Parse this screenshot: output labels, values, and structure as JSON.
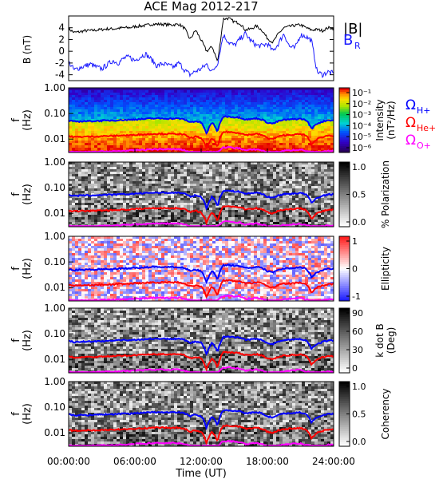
{
  "title": "ACE Mag 2012-217",
  "colors": {
    "b_total": "#000000",
    "b_r": "#1a1aff",
    "omega_h": "#0000ff",
    "omega_he": "#ff0000",
    "omega_o": "#ff00ff"
  },
  "x_axis": {
    "label": "Time (UT)",
    "ticks": [
      "00:00:00",
      "06:00:00",
      "12:00:00",
      "18:00:00",
      "24:00:00"
    ]
  },
  "freq_ticks": [
    "1.00",
    "0.10",
    "0.01"
  ],
  "panels": [
    {
      "id": "intensity",
      "ylabel_line1": "f",
      "ylabel_line2": "(Hz)",
      "colorbar_title_line1": "Intensity",
      "colorbar_title_line2": "(nT²/Hz)",
      "colorbar_ticks": [
        "10⁻¹",
        "10⁻²",
        "10⁻³",
        "10⁻⁴",
        "10⁻⁵",
        "10⁻⁶"
      ],
      "legend": [
        {
          "label": "Ω",
          "sub": "H+",
          "color": "#0000ff"
        },
        {
          "label": "Ω",
          "sub": "He+",
          "color": "#ff0000"
        },
        {
          "label": "Ω",
          "sub": "O+",
          "color": "#ff00ff"
        }
      ]
    },
    {
      "id": "polarization",
      "ylabel_line1": "f",
      "ylabel_line2": "(Hz)",
      "colorbar_title_line1": "% Polarization",
      "colorbar_title_line2": "",
      "colorbar_ticks": [
        "1.0",
        "0.5",
        "0.0"
      ]
    },
    {
      "id": "ellipticity",
      "ylabel_line1": "f",
      "ylabel_line2": "(Hz)",
      "colorbar_title_line1": "Ellipticity",
      "colorbar_title_line2": "",
      "colorbar_ticks": [
        "1",
        "0",
        "-1"
      ]
    },
    {
      "id": "kdotb",
      "ylabel_line1": "f",
      "ylabel_line2": "(Hz)",
      "colorbar_title_line1": "k dot B",
      "colorbar_title_line2": "(Deg)",
      "colorbar_ticks": [
        "90",
        "60",
        "30",
        "0"
      ]
    },
    {
      "id": "coherency",
      "ylabel_line1": "f",
      "ylabel_line2": "(Hz)",
      "colorbar_title_line1": "Coherency",
      "colorbar_title_line2": "",
      "colorbar_ticks": [
        "1.0",
        "0.5",
        "0.0"
      ]
    }
  ],
  "chart_data": {
    "type": "line",
    "title": "ACE Mag 2012-217",
    "xlabel": "Time (UT)",
    "ylabel": "B (nT)",
    "xlim": [
      0,
      24
    ],
    "ylim": [
      -5,
      6
    ],
    "yticks": [
      4,
      2,
      0,
      -2,
      -4
    ],
    "x_hours": [
      0,
      0.5,
      1,
      1.5,
      2,
      2.5,
      3,
      3.5,
      4,
      4.5,
      5,
      5.5,
      6,
      6.5,
      7,
      7.5,
      8,
      8.5,
      9,
      9.5,
      10,
      10.5,
      11,
      11.5,
      12,
      12.5,
      13,
      13.5,
      14,
      14.5,
      15,
      15.5,
      16,
      16.5,
      17,
      17.5,
      18,
      18.5,
      19,
      19.5,
      20,
      20.5,
      21,
      21.5,
      22,
      22.5,
      23,
      23.5,
      24
    ],
    "series": [
      {
        "name": "|B|",
        "values": [
          3.8,
          3.2,
          3.3,
          3.5,
          3.5,
          3.6,
          3.7,
          3.8,
          3.8,
          3.9,
          4.0,
          4.0,
          4.2,
          4.3,
          4.4,
          4.6,
          4.6,
          4.6,
          4.5,
          4.5,
          4.6,
          3.9,
          2.0,
          3.6,
          1.9,
          0.0,
          0.8,
          -1.8,
          5.5,
          5.6,
          5.0,
          4.8,
          3.6,
          3.8,
          4.3,
          3.6,
          2.2,
          1.5,
          3.0,
          4.0,
          4.2,
          4.4,
          4.5,
          4.0,
          3.6,
          3.7,
          3.5,
          4.0,
          3.9
        ]
      },
      {
        "name": "B",
        "sub": "R",
        "values": [
          -1.8,
          -3.2,
          -2.8,
          -2.5,
          -2.2,
          -2.7,
          -3.0,
          -2.3,
          -1.6,
          -2.0,
          -1.2,
          -1.0,
          -1.6,
          -0.9,
          -0.5,
          -1.4,
          -2.5,
          -2.1,
          -2.4,
          -2.7,
          -2.0,
          -3.2,
          -4.0,
          -3.4,
          -3.0,
          -2.2,
          -3.5,
          -2.0,
          2.8,
          1.5,
          1.0,
          2.0,
          3.0,
          1.8,
          1.0,
          0.9,
          1.3,
          0.0,
          1.3,
          3.0,
          0.8,
          0.5,
          2.8,
          2.5,
          1.8,
          -3.5,
          -4.0,
          -3.5,
          -3.8
        ]
      }
    ],
    "spectrogram_panels": [
      {
        "name": "Intensity",
        "yscale": "log",
        "ylim": [
          0.003,
          1.0
        ],
        "colorscale": "rainbow",
        "clim": [
          1e-06,
          0.1
        ]
      },
      {
        "name": "% Polarization",
        "yscale": "log",
        "ylim": [
          0.003,
          1.0
        ],
        "colorscale": "gray",
        "clim": [
          0.0,
          1.0
        ]
      },
      {
        "name": "Ellipticity",
        "yscale": "log",
        "ylim": [
          0.003,
          1.0
        ],
        "colorscale": "blue-white-red",
        "clim": [
          -1,
          1
        ]
      },
      {
        "name": "k dot B",
        "yscale": "log",
        "ylim": [
          0.003,
          1.0
        ],
        "colorscale": "gray",
        "clim": [
          0,
          90
        ]
      },
      {
        "name": "Coherency",
        "yscale": "log",
        "ylim": [
          0.003,
          1.0
        ],
        "colorscale": "gray",
        "clim": [
          0.0,
          1.0
        ]
      }
    ],
    "gyrofrequency_lines": [
      {
        "name": "ΩH+",
        "values": [
          0.052,
          0.048,
          0.049,
          0.05,
          0.05,
          0.051,
          0.052,
          0.053,
          0.053,
          0.055,
          0.056,
          0.056,
          0.059,
          0.06,
          0.061,
          0.064,
          0.064,
          0.064,
          0.063,
          0.063,
          0.064,
          0.058,
          0.045,
          0.05,
          0.044,
          0.015,
          0.045,
          0.018,
          0.075,
          0.076,
          0.072,
          0.07,
          0.058,
          0.06,
          0.065,
          0.058,
          0.044,
          0.04,
          0.05,
          0.056,
          0.058,
          0.06,
          0.062,
          0.055,
          0.025,
          0.04,
          0.048,
          0.055,
          0.054
        ]
      },
      {
        "name": "ΩHe+",
        "values": [
          0.013,
          0.012,
          0.0122,
          0.0125,
          0.0125,
          0.0127,
          0.013,
          0.0132,
          0.0132,
          0.0137,
          0.014,
          0.014,
          0.0148,
          0.015,
          0.0152,
          0.016,
          0.016,
          0.016,
          0.0158,
          0.0158,
          0.016,
          0.0145,
          0.011,
          0.0125,
          0.011,
          0.004,
          0.011,
          0.0045,
          0.019,
          0.019,
          0.018,
          0.0175,
          0.0145,
          0.015,
          0.016,
          0.0145,
          0.011,
          0.01,
          0.0125,
          0.014,
          0.0145,
          0.015,
          0.0155,
          0.0138,
          0.006,
          0.01,
          0.012,
          0.0138,
          0.0135
        ]
      },
      {
        "name": "ΩO+",
        "values": [
          0.0033,
          0.003,
          0.0031,
          0.0031,
          0.0031,
          0.0032,
          0.0033,
          0.0033,
          0.0033,
          0.0034,
          0.0035,
          0.0035,
          0.0037,
          0.0038,
          0.0038,
          0.004,
          0.004,
          0.004,
          0.004,
          0.004,
          0.004,
          0.0036,
          0.0031,
          0.0031,
          0.0031,
          0.0031,
          0.0031,
          0.0031,
          0.0047,
          0.0048,
          0.0045,
          0.0044,
          0.0036,
          0.0038,
          0.004,
          0.0036,
          0.0031,
          0.0031,
          0.0031,
          0.0035,
          0.0036,
          0.0038,
          0.0039,
          0.0034,
          0.0031,
          0.0031,
          0.0031,
          0.0034,
          0.0034
        ]
      }
    ]
  }
}
